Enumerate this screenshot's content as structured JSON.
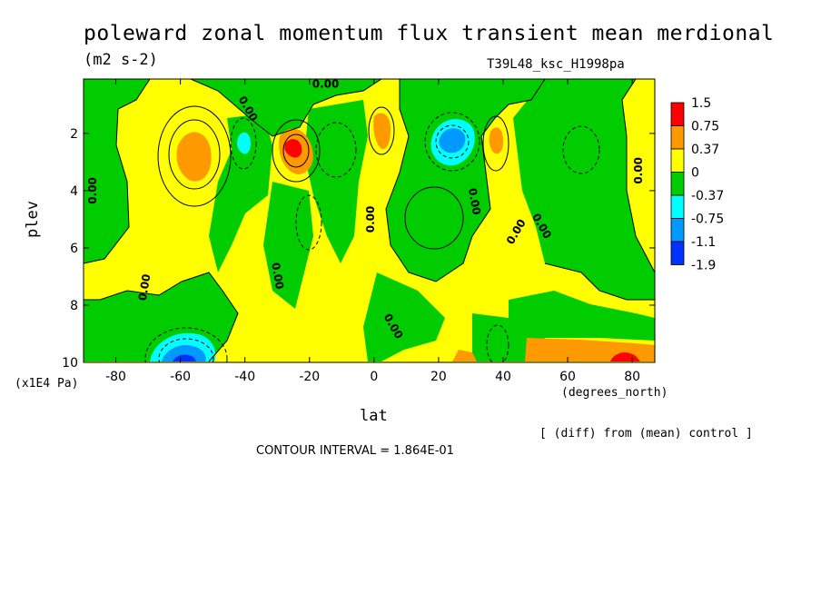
{
  "title": "poleward zonal momentum flux transient mean merdional",
  "units": "(m2 s-2)",
  "run_id": "T39L48_ksc_H1998pa",
  "y_exponent_label": "(x1E4 Pa)",
  "x_units_label": "(degrees_north)",
  "diff_note": "[ (diff) from (mean) control ]",
  "contour_interval_text": "CONTOUR INTERVAL = 1.864E-01",
  "chart_data": {
    "type": "heatmap",
    "xlabel": "lat",
    "ylabel": "plev",
    "x_ticks": [
      -80,
      -60,
      -40,
      -20,
      0,
      20,
      40,
      60,
      80
    ],
    "x_tick_labels": [
      "-80",
      "-60",
      "-40",
      "-20",
      "0",
      "20",
      "40",
      "60",
      "80"
    ],
    "y_ticks": [
      2,
      4,
      6,
      8,
      10
    ],
    "y_tick_labels": [
      "2",
      "4",
      "6",
      "8",
      "10"
    ],
    "xlim": [
      -90,
      87
    ],
    "ylim": [
      10,
      0.1
    ],
    "y_inverted": true,
    "contour_labels": [
      "0.00",
      "0.00",
      "0.00",
      "0.00",
      "0.00",
      "0.00",
      "0.00",
      "0.00",
      "0.00",
      "0.00",
      "0.00"
    ],
    "colorbar": {
      "labels": [
        "1.5",
        "0.75",
        "0.37",
        "0",
        "-0.37",
        "-0.75",
        "-1.1",
        "-1.9"
      ],
      "colors": [
        "#ff0000",
        "#ff9900",
        "#ffff00",
        "#00cc00",
        "#00ffff",
        "#0099ff",
        "#0033ff"
      ]
    },
    "palette": {
      "positive_high": "#ff0000",
      "positive_mid": "#ff9900",
      "positive_low": "#ffff00",
      "negative_low": "#00cc00",
      "negative_mid": "#00ffff",
      "negative_high": "#0099ff",
      "negative_max": "#0033ff"
    },
    "features": [
      {
        "lat": -55,
        "plev": 2.8,
        "sign": "positive",
        "peak": 0.5
      },
      {
        "lat": -25,
        "plev": 2.6,
        "sign": "positive",
        "peak": 1.2
      },
      {
        "lat": 5,
        "plev": 2.0,
        "sign": "positive",
        "peak": 0.45
      },
      {
        "lat": 38,
        "plev": 2.4,
        "sign": "positive",
        "peak": 0.45
      },
      {
        "lat": 25,
        "plev": 2.3,
        "sign": "negative",
        "peak": -0.9
      },
      {
        "lat": -43,
        "plev": 2.5,
        "sign": "negative",
        "peak": -0.6
      },
      {
        "lat": -57,
        "plev": 9.6,
        "sign": "negative",
        "peak": -1.3
      },
      {
        "lat": 60,
        "plev": 9.6,
        "sign": "positive",
        "peak": 0.6
      },
      {
        "lat": 80,
        "plev": 9.9,
        "sign": "positive",
        "peak": 1.3
      }
    ]
  }
}
